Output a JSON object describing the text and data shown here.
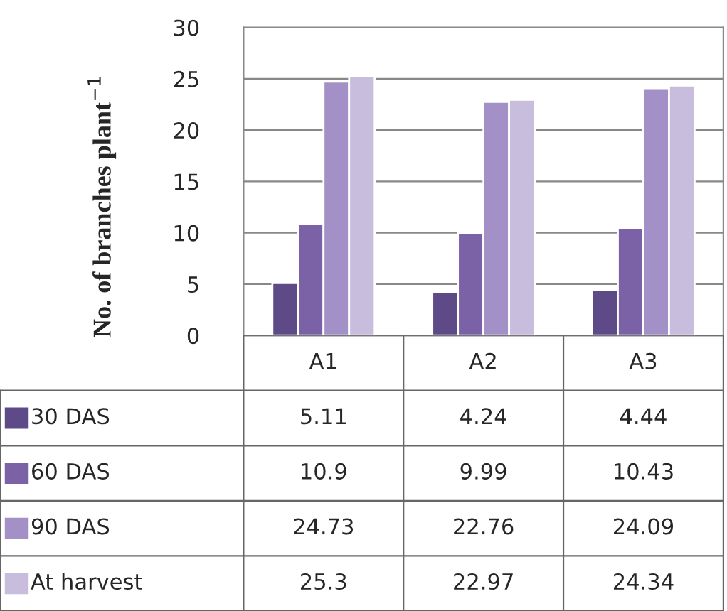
{
  "chart_data": {
    "type": "bar",
    "ylabel": "No. of branches plant$^{−1}$",
    "categories": [
      "A1",
      "A2",
      "A3"
    ],
    "series": [
      {
        "name": "30 DAS",
        "color": "#5e4a87",
        "values": [
          5.11,
          4.24,
          4.44
        ]
      },
      {
        "name": "60 DAS",
        "color": "#7b62a6",
        "values": [
          10.9,
          9.99,
          10.43
        ]
      },
      {
        "name": "90 DAS",
        "color": "#a390c6",
        "values": [
          24.73,
          22.76,
          24.09
        ]
      },
      {
        "name": "At harvest",
        "color": "#c8bddc",
        "values": [
          25.3,
          22.97,
          24.34
        ]
      }
    ],
    "ylim": [
      0,
      30
    ],
    "yticks": [
      0,
      5,
      10,
      15,
      20,
      25,
      30
    ],
    "grid": "y",
    "legend": "bottom",
    "data_labels": true
  }
}
